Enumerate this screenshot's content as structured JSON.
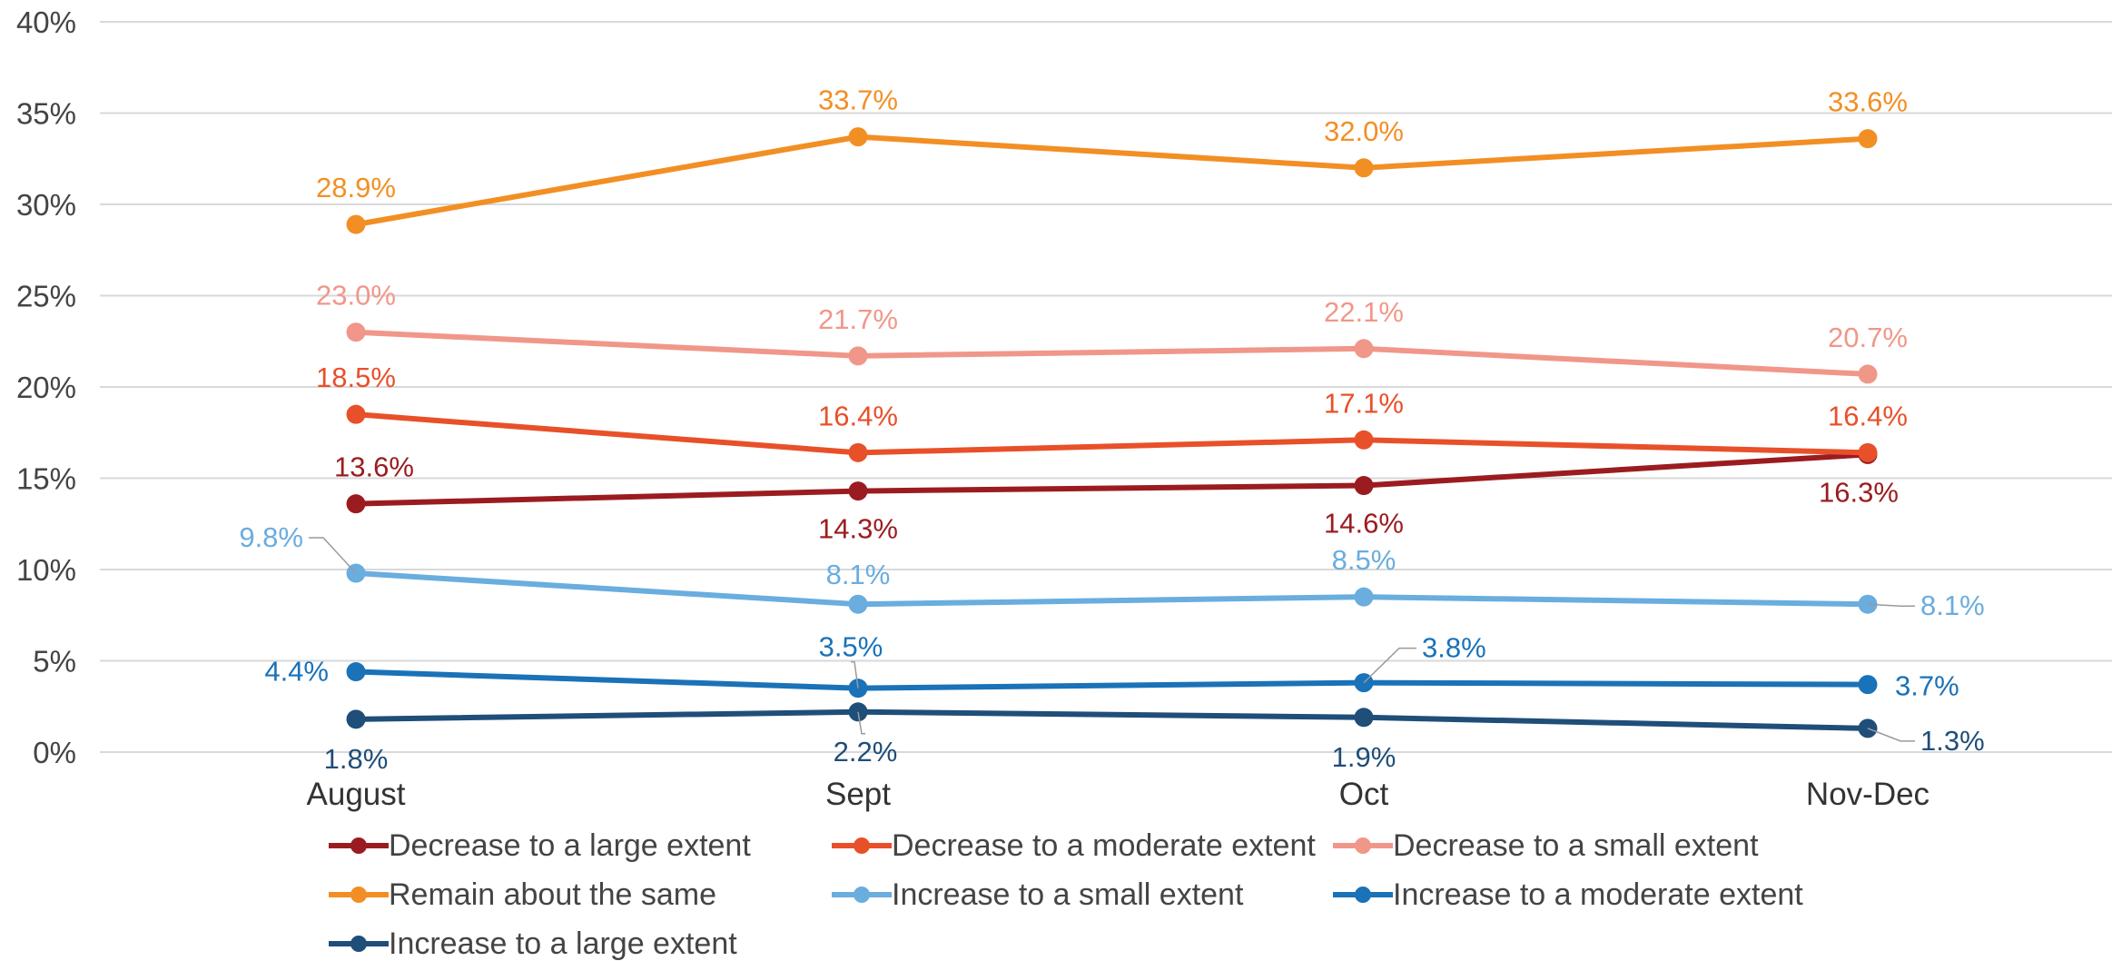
{
  "chart_data": {
    "type": "line",
    "categories": [
      "August",
      "Sept",
      "Oct",
      "Nov-Dec"
    ],
    "ylim": [
      0,
      40
    ],
    "yticks": [
      "0%",
      "5%",
      "10%",
      "15%",
      "20%",
      "25%",
      "30%",
      "35%",
      "40%"
    ],
    "grid": true,
    "legend_position": "bottom",
    "series": [
      {
        "name": "Decrease to a large extent",
        "color": "#9b1c20",
        "values": [
          13.6,
          14.3,
          14.6,
          16.3
        ],
        "labels": [
          "13.6%",
          "14.3%",
          "14.6%",
          "16.3%"
        ]
      },
      {
        "name": "Decrease to a moderate extent",
        "color": "#e8502a",
        "values": [
          18.5,
          16.4,
          17.1,
          16.4
        ],
        "labels": [
          "18.5%",
          "16.4%",
          "17.1%",
          "16.4%"
        ]
      },
      {
        "name": "Decrease to a small extent",
        "color": "#f0978a",
        "values": [
          23.0,
          21.7,
          22.1,
          20.7
        ],
        "labels": [
          "23.0%",
          "21.7%",
          "22.1%",
          "20.7%"
        ]
      },
      {
        "name": "Remain about the same",
        "color": "#f28f24",
        "values": [
          28.9,
          33.7,
          32.0,
          33.6
        ],
        "labels": [
          "28.9%",
          "33.7%",
          "32.0%",
          "33.6%"
        ]
      },
      {
        "name": "Increase to a small extent",
        "color": "#6aaddf",
        "values": [
          9.8,
          8.1,
          8.5,
          8.1
        ],
        "labels": [
          "9.8%",
          "8.1%",
          "8.5%",
          "8.1%"
        ]
      },
      {
        "name": "Increase to a moderate extent",
        "color": "#1a72b8",
        "values": [
          4.4,
          3.5,
          3.8,
          3.7
        ],
        "labels": [
          "4.4%",
          "3.5%",
          "3.8%",
          "3.7%"
        ]
      },
      {
        "name": "Increase to a large extent",
        "color": "#1f4e79",
        "values": [
          1.8,
          2.2,
          1.9,
          1.3
        ],
        "labels": [
          "1.8%",
          "2.2%",
          "1.9%",
          "1.3%"
        ]
      }
    ]
  }
}
